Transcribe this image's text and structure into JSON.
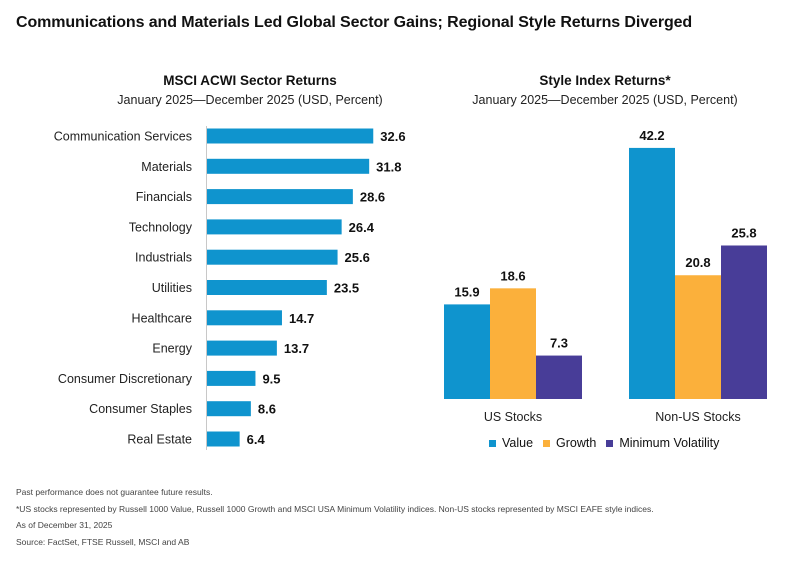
{
  "title": "Communications and Materials Led Global Sector Gains; Regional Style Returns Diverged",
  "chart_data": [
    {
      "type": "bar",
      "orientation": "horizontal",
      "title": "MSCI ACWI Sector Returns",
      "subtitle": "January 2025—December 2025 (USD, Percent)",
      "categories": [
        "Communication Services",
        "Materials",
        "Financials",
        "Technology",
        "Industrials",
        "Utilities",
        "Healthcare",
        "Energy",
        "Consumer Discretionary",
        "Consumer Staples",
        "Real Estate"
      ],
      "values": [
        32.6,
        31.8,
        28.6,
        26.4,
        25.6,
        23.5,
        14.7,
        13.7,
        9.5,
        8.6,
        6.4
      ],
      "color": "#0f94ce"
    },
    {
      "type": "bar",
      "title": "Style Index Returns*",
      "subtitle": "January 2025—December 2025 (USD, Percent)",
      "categories": [
        "US Stocks",
        "Non-US Stocks"
      ],
      "series": [
        {
          "name": "Value",
          "values": [
            15.9,
            42.2
          ],
          "color": "#0f94ce"
        },
        {
          "name": "Growth",
          "values": [
            18.6,
            20.8
          ],
          "color": "#fbb03b"
        },
        {
          "name": "Minimum Volatility",
          "values": [
            7.3,
            25.8
          ],
          "color": "#483d98"
        }
      ],
      "legend": "bottom"
    }
  ],
  "footnotes": [
    "Past performance does not guarantee future results.",
    "*US stocks represented by Russell 1000 Value, Russell 1000 Growth and MSCI USA Minimum Volatility indices. Non-US stocks represented by MSCI EAFE style indices.",
    "As of December 31, 2025",
    "Source: FactSet, FTSE Russell, MSCI and AB"
  ]
}
